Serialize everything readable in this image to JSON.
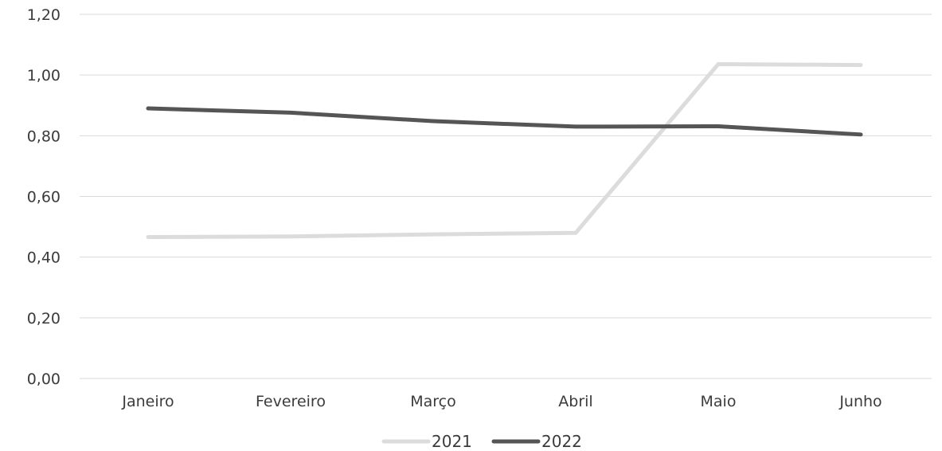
{
  "chart_data": {
    "type": "line",
    "categories": [
      "Janeiro",
      "Fevereiro",
      "Março",
      "Abril",
      "Maio",
      "Junho"
    ],
    "series": [
      {
        "name": "2021",
        "values": [
          0.466,
          0.468,
          0.475,
          0.48,
          1.036,
          1.033
        ],
        "color": "#dcdcdc"
      },
      {
        "name": "2022",
        "values": [
          0.89,
          0.876,
          0.848,
          0.83,
          0.831,
          0.804
        ],
        "color": "#555555"
      }
    ],
    "yticks": [
      "0,00",
      "0,20",
      "0,40",
      "0,60",
      "0,80",
      "1,00",
      "1,20"
    ],
    "ylim": [
      0,
      1.2
    ],
    "grid": true,
    "legend": "bottom"
  }
}
